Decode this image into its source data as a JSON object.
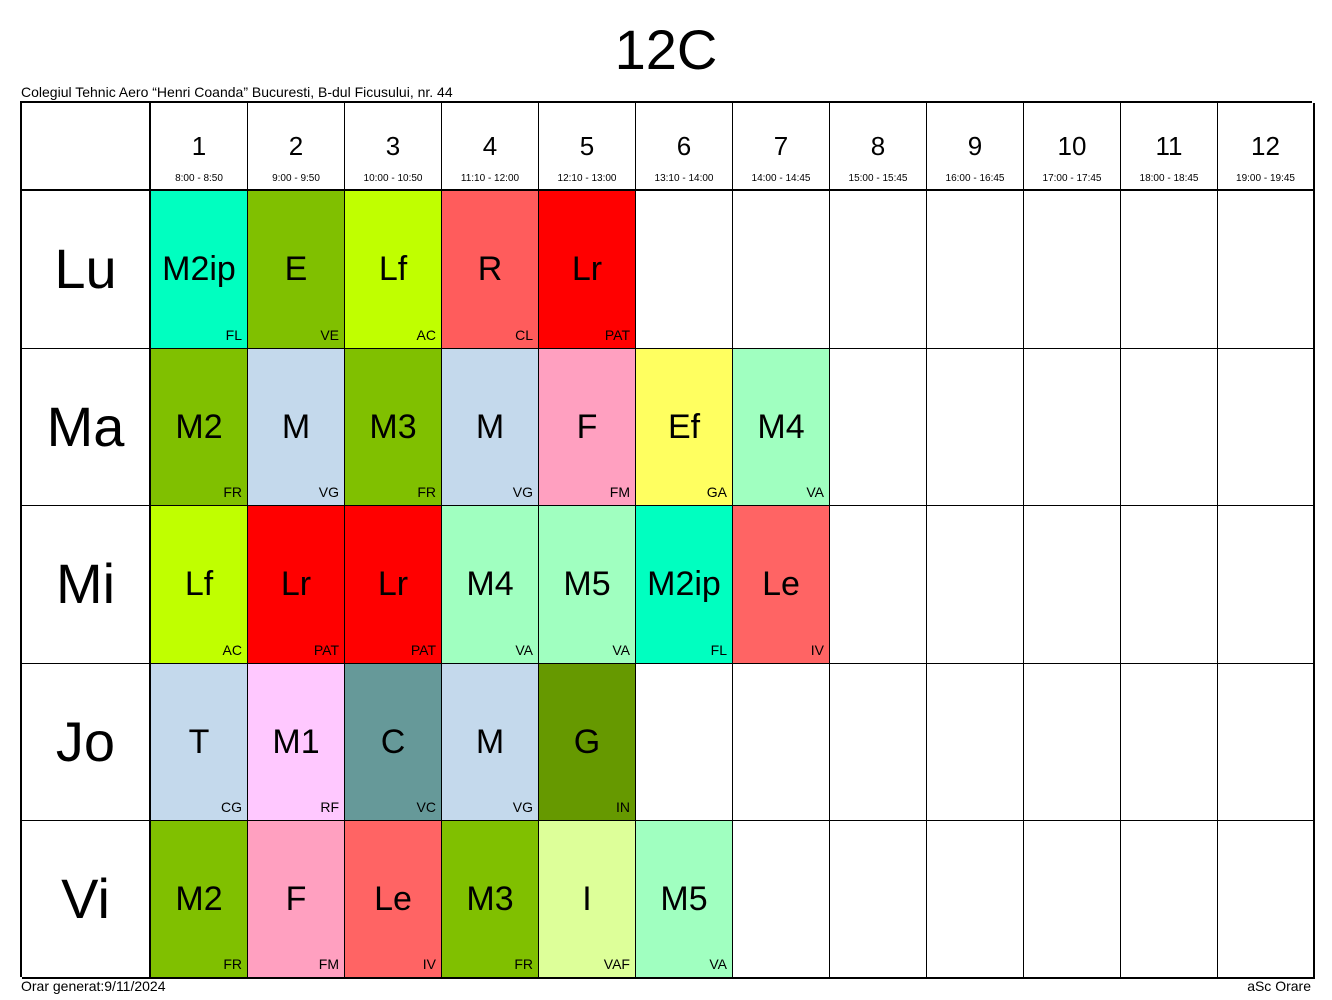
{
  "title": "12C",
  "school": "Colegiul Tehnic Aero “Henri Coanda” Bucuresti, B-dul Ficusului, nr. 44",
  "periods": [
    {
      "num": "1",
      "time": "8:00 - 8:50"
    },
    {
      "num": "2",
      "time": "9:00 - 9:50"
    },
    {
      "num": "3",
      "time": "10:00 - 10:50"
    },
    {
      "num": "4",
      "time": "11:10 - 12:00"
    },
    {
      "num": "5",
      "time": "12:10 - 13:00"
    },
    {
      "num": "6",
      "time": "13:10 - 14:00"
    },
    {
      "num": "7",
      "time": "14:00 - 14:45"
    },
    {
      "num": "8",
      "time": "15:00 - 15:45"
    },
    {
      "num": "9",
      "time": "16:00 - 16:45"
    },
    {
      "num": "10",
      "time": "17:00 - 17:45"
    },
    {
      "num": "11",
      "time": "18:00 - 18:45"
    },
    {
      "num": "12",
      "time": "19:00 - 19:45"
    }
  ],
  "days": [
    {
      "name": "Lu",
      "lessons": [
        {
          "subject": "M2ip",
          "teacher": "FL",
          "color": "#00FFC0"
        },
        {
          "subject": "E",
          "teacher": "VE",
          "color": "#80C000"
        },
        {
          "subject": "Lf",
          "teacher": "AC",
          "color": "#C0FF00"
        },
        {
          "subject": "R",
          "teacher": "CL",
          "color": "#FF5C5C"
        },
        {
          "subject": "Lr",
          "teacher": "PAT",
          "color": "#FF0000"
        }
      ]
    },
    {
      "name": "Ma",
      "lessons": [
        {
          "subject": "M2",
          "teacher": "FR",
          "color": "#80C000"
        },
        {
          "subject": "M",
          "teacher": "VG",
          "color": "#C4D9EC"
        },
        {
          "subject": "M3",
          "teacher": "FR",
          "color": "#80C000"
        },
        {
          "subject": "M",
          "teacher": "VG",
          "color": "#C4D9EC"
        },
        {
          "subject": "F",
          "teacher": "FM",
          "color": "#FFA0C0"
        },
        {
          "subject": "Ef",
          "teacher": "GA",
          "color": "#FFFF60"
        },
        {
          "subject": "M4",
          "teacher": "VA",
          "color": "#A0FFC0"
        }
      ]
    },
    {
      "name": "Mi",
      "lessons": [
        {
          "subject": "Lf",
          "teacher": "AC",
          "color": "#C0FF00"
        },
        {
          "subject": "Lr",
          "teacher": "PAT",
          "color": "#FF0000"
        },
        {
          "subject": "Lr",
          "teacher": "PAT",
          "color": "#FF0000"
        },
        {
          "subject": "M4",
          "teacher": "VA",
          "color": "#A0FFC0"
        },
        {
          "subject": "M5",
          "teacher": "VA",
          "color": "#A0FFC0"
        },
        {
          "subject": "M2ip",
          "teacher": "FL",
          "color": "#00FFC0"
        },
        {
          "subject": "Le",
          "teacher": "IV",
          "color": "#FF6464"
        }
      ]
    },
    {
      "name": "Jo",
      "lessons": [
        {
          "subject": "T",
          "teacher": "CG",
          "color": "#C4D9EC"
        },
        {
          "subject": "M1",
          "teacher": "RF",
          "color": "#FFC8FF"
        },
        {
          "subject": "C",
          "teacher": "VC",
          "color": "#669999"
        },
        {
          "subject": "M",
          "teacher": "VG",
          "color": "#C4D9EC"
        },
        {
          "subject": "G",
          "teacher": "IN",
          "color": "#669900"
        }
      ]
    },
    {
      "name": "Vi",
      "lessons": [
        {
          "subject": "M2",
          "teacher": "FR",
          "color": "#80C000"
        },
        {
          "subject": "F",
          "teacher": "FM",
          "color": "#FFA0C0"
        },
        {
          "subject": "Le",
          "teacher": "IV",
          "color": "#FF6464"
        },
        {
          "subject": "M3",
          "teacher": "FR",
          "color": "#80C000"
        },
        {
          "subject": "I",
          "teacher": "VAF",
          "color": "#DDFF99"
        },
        {
          "subject": "M5",
          "teacher": "VA",
          "color": "#A0FFC0"
        }
      ]
    }
  ],
  "footer": {
    "generated": "Orar generat:9/11/2024",
    "app": "aSc Orare"
  }
}
